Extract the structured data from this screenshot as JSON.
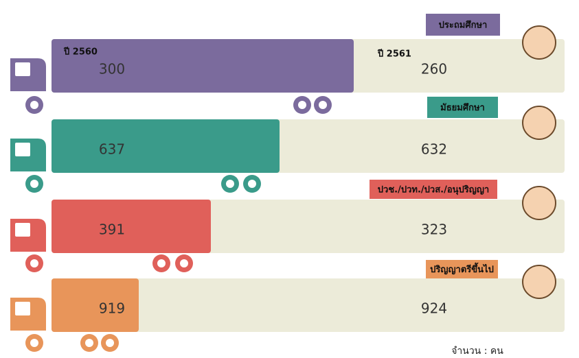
{
  "legend": {
    "year_a": "ปี 2560",
    "year_b": "ปี 2561"
  },
  "rows": [
    {
      "label": "ประถมศึกษา",
      "value_a": 300,
      "value_b": 260
    },
    {
      "label": "มัธยมศึกษา",
      "value_a": 637,
      "value_b": 632
    },
    {
      "label": "ปวช./ปวท./ปวส./อนุปริญญา",
      "value_a": 391,
      "value_b": 323
    },
    {
      "label": "ปริญญาตรีขึ้นไป",
      "value_a": 919,
      "value_b": 924
    }
  ],
  "unit_note": "จำนวน : คน"
}
